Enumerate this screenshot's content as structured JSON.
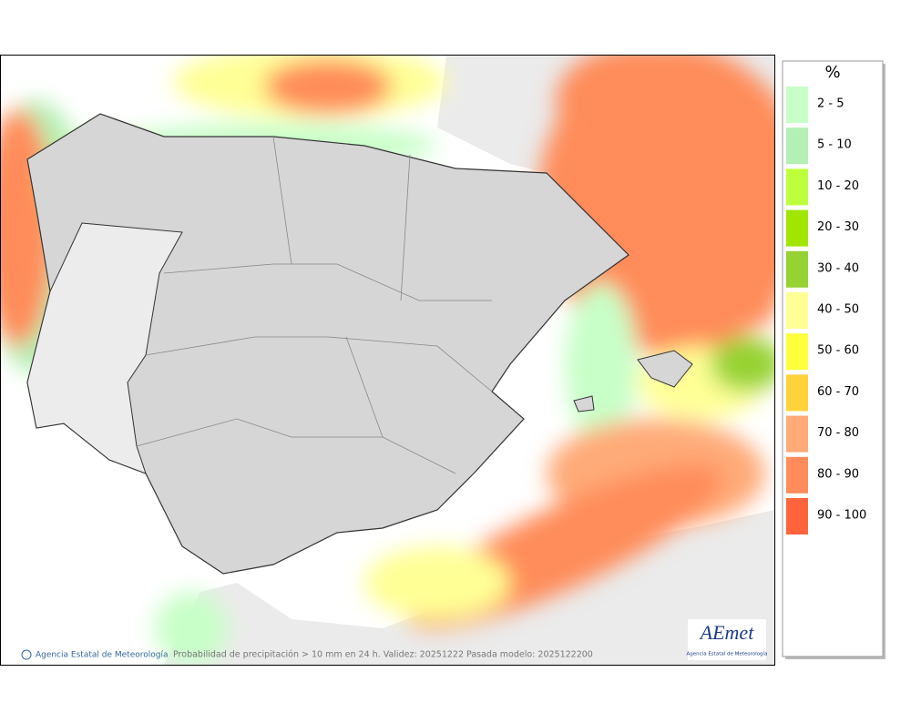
{
  "legend": {
    "title": "%",
    "items": [
      {
        "label": "2 - 5",
        "color": "#c8ffc8"
      },
      {
        "label": "5 - 10",
        "color": "#b4f0b4"
      },
      {
        "label": "10 - 20",
        "color": "#beff3c"
      },
      {
        "label": "20 - 30",
        "color": "#a0e600"
      },
      {
        "label": "30 - 40",
        "color": "#96d232"
      },
      {
        "label": "40 - 50",
        "color": "#ffff96"
      },
      {
        "label": "50 - 60",
        "color": "#ffff3c"
      },
      {
        "label": "60 - 70",
        "color": "#ffd23c"
      },
      {
        "label": "70 - 80",
        "color": "#ffaa78"
      },
      {
        "label": "80 - 90",
        "color": "#ff8c5a"
      },
      {
        "label": "90 - 100",
        "color": "#ff643c"
      }
    ]
  },
  "footer": {
    "credit": "Agencia Estatal de Meteorología",
    "caption": "Probabilidad de precipitación > 10 mm en 24 h. Validez: 20251222 Pasada modelo: 2025122200"
  },
  "logo": {
    "name": "AEmet",
    "subtitle": "Agencia Estatal de Meteorología"
  }
}
